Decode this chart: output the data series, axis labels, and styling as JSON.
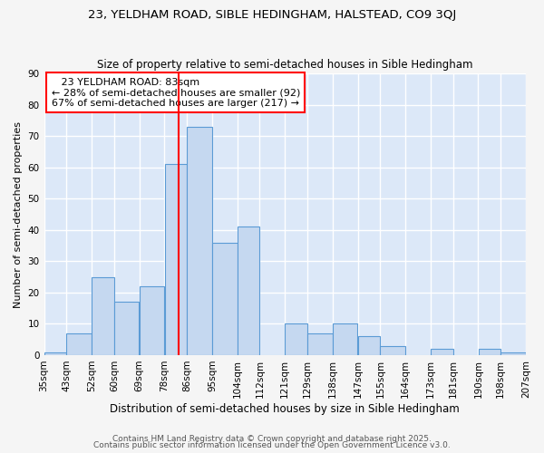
{
  "title": "23, YELDHAM ROAD, SIBLE HEDINGHAM, HALSTEAD, CO9 3QJ",
  "subtitle": "Size of property relative to semi-detached houses in Sible Hedingham",
  "xlabel": "Distribution of semi-detached houses by size in Sible Hedingham",
  "ylabel": "Number of semi-detached properties",
  "bin_labels": [
    "35sqm",
    "43sqm",
    "52sqm",
    "60sqm",
    "69sqm",
    "78sqm",
    "86sqm",
    "95sqm",
    "104sqm",
    "112sqm",
    "121sqm",
    "129sqm",
    "138sqm",
    "147sqm",
    "155sqm",
    "164sqm",
    "173sqm",
    "181sqm",
    "190sqm",
    "198sqm",
    "207sqm"
  ],
  "bin_edges": [
    35,
    43,
    52,
    60,
    69,
    78,
    86,
    95,
    104,
    112,
    121,
    129,
    138,
    147,
    155,
    164,
    173,
    181,
    190,
    198,
    207
  ],
  "bar_values": [
    1,
    7,
    25,
    17,
    22,
    61,
    73,
    36,
    41,
    0,
    10,
    7,
    10,
    6,
    3,
    0,
    2,
    0,
    2,
    1
  ],
  "bar_color": "#c5d8f0",
  "bar_edgecolor": "#5b9bd5",
  "plot_bg_color": "#dce8f8",
  "fig_bg_color": "#f5f5f5",
  "grid_color": "#ffffff",
  "vline_x": 83,
  "vline_color": "red",
  "annotation_title": "23 YELDHAM ROAD: 83sqm",
  "annotation_line1": "← 28% of semi-detached houses are smaller (92)",
  "annotation_line2": "67% of semi-detached houses are larger (217) →",
  "annotation_box_edgecolor": "red",
  "ylim": [
    0,
    90
  ],
  "yticks": [
    0,
    10,
    20,
    30,
    40,
    50,
    60,
    70,
    80,
    90
  ],
  "footer1": "Contains HM Land Registry data © Crown copyright and database right 2025.",
  "footer2": "Contains public sector information licensed under the Open Government Licence v3.0.",
  "title_fontsize": 9.5,
  "subtitle_fontsize": 8.5,
  "xlabel_fontsize": 8.5,
  "ylabel_fontsize": 8,
  "tick_fontsize": 7.5,
  "annotation_fontsize": 8,
  "footer_fontsize": 6.5
}
